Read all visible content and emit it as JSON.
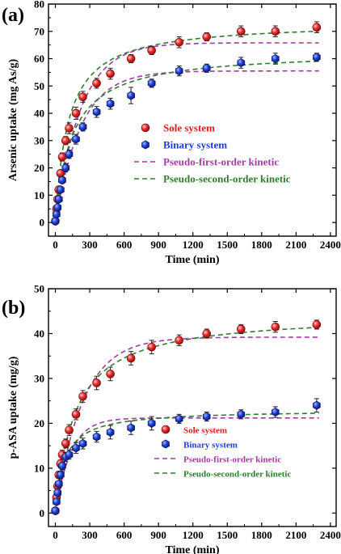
{
  "chart_data": [
    {
      "type": "scatter",
      "panel_label": "(a)",
      "xlabel": "Time (min)",
      "ylabel": "Arsenic uptake (mg As/g)",
      "xlim": [
        -60,
        2450
      ],
      "ylim": [
        -5,
        80
      ],
      "x_ticks": [
        0,
        300,
        600,
        900,
        1200,
        1500,
        1800,
        2100,
        2400
      ],
      "y_ticks": [
        0,
        10,
        20,
        30,
        40,
        50,
        60,
        70,
        80
      ],
      "grid": false,
      "legend_position": "center-right",
      "series": [
        {
          "name": "Sole system",
          "kind": "points",
          "color": "#e01b1b",
          "x": [
            0,
            10,
            20,
            30,
            45,
            60,
            90,
            120,
            180,
            240,
            360,
            480,
            660,
            840,
            1080,
            1320,
            1620,
            1920,
            2280
          ],
          "y": [
            0.5,
            5,
            8.5,
            12,
            18,
            24,
            30,
            34.5,
            40,
            46,
            51,
            54.5,
            60,
            63,
            66,
            68,
            70,
            70,
            71.5
          ],
          "err": [
            0.5,
            0.8,
            0.8,
            1,
            1.2,
            1.5,
            1.5,
            2,
            2.2,
            2,
            1.8,
            2,
            1.5,
            1.5,
            2,
            1.5,
            2,
            2,
            2
          ]
        },
        {
          "name": "Binary system",
          "kind": "points",
          "color": "#1b3fd6",
          "x": [
            0,
            10,
            20,
            30,
            45,
            60,
            90,
            120,
            180,
            240,
            360,
            480,
            660,
            840,
            1080,
            1320,
            1620,
            1920,
            2280
          ],
          "y": [
            0.5,
            3,
            5.5,
            8.5,
            12,
            15.5,
            20,
            25,
            30.5,
            35,
            40.5,
            43.5,
            46.5,
            51,
            55.5,
            56.5,
            58.5,
            60,
            60.5
          ],
          "err": [
            0.5,
            0.6,
            0.7,
            0.8,
            1,
            1.2,
            1.5,
            1.5,
            1.8,
            1.5,
            2,
            2,
            3,
            1.5,
            1.8,
            1.5,
            2,
            2,
            1.5
          ]
        },
        {
          "name": "Pseudo-first-order kinetic",
          "kind": "dashed-pair",
          "color": "#a23aa2",
          "curves": [
            {
              "qe": 65.8,
              "k1": 0.0045
            },
            {
              "qe": 55.5,
              "k1": 0.0045
            }
          ]
        },
        {
          "name": "Pseudo-second-order kinetic",
          "kind": "dashed-pair",
          "color": "#2e7d2e",
          "curves": [
            {
              "qe": 73.5,
              "k2": 0.00012
            },
            {
              "qe": 62.8,
              "k2": 0.00011
            }
          ]
        }
      ]
    },
    {
      "type": "scatter",
      "panel_label": "(b)",
      "xlabel": "Time (min)",
      "ylabel": "p-ASA uptake (mg/g)",
      "xlim": [
        -60,
        2450
      ],
      "ylim": [
        -3,
        50
      ],
      "x_ticks": [
        0,
        300,
        600,
        900,
        1200,
        1500,
        1800,
        2100,
        2400
      ],
      "y_ticks": [
        0,
        10,
        20,
        30,
        40,
        50
      ],
      "grid": false,
      "legend_position": "bottom-right",
      "series": [
        {
          "name": "Sole system",
          "kind": "points",
          "color": "#e01b1b",
          "x": [
            0,
            10,
            20,
            30,
            45,
            60,
            90,
            120,
            180,
            240,
            360,
            480,
            660,
            840,
            1080,
            1320,
            1620,
            1920,
            2280
          ],
          "y": [
            0.5,
            3.5,
            6,
            8.5,
            11,
            13,
            15.5,
            18.5,
            22,
            26,
            29,
            31,
            34.5,
            37,
            38.5,
            40,
            41,
            41.5,
            42
          ],
          "err": [
            0.3,
            0.5,
            0.6,
            0.8,
            0.8,
            1,
            1,
            1.2,
            1.2,
            1.3,
            1.5,
            1.5,
            1.5,
            1.5,
            1.2,
            1,
            1,
            1.2,
            1
          ]
        },
        {
          "name": "Binary system",
          "kind": "points",
          "color": "#1b3fd6",
          "x": [
            0,
            10,
            20,
            30,
            45,
            60,
            90,
            120,
            180,
            240,
            360,
            480,
            660,
            840,
            1080,
            1320,
            1620,
            1920,
            2280
          ],
          "y": [
            0.5,
            2.5,
            4.5,
            6.5,
            8.5,
            10.5,
            12.5,
            13,
            14.5,
            15.5,
            17,
            18,
            19,
            20,
            21,
            21.5,
            22,
            22.5,
            24
          ],
          "err": [
            0.3,
            0.4,
            0.5,
            0.6,
            0.8,
            0.8,
            1,
            1,
            1.2,
            1.2,
            1.2,
            1.5,
            1.5,
            1.5,
            1,
            1,
            1,
            1.2,
            1.5
          ]
        },
        {
          "name": "Pseudo-first-order kinetic",
          "kind": "dashed-pair",
          "color": "#a23aa2",
          "curves": [
            {
              "qe": 39.2,
              "k1": 0.0042
            },
            {
              "qe": 21.2,
              "k1": 0.0075
            }
          ]
        },
        {
          "name": "Pseudo-second-order kinetic",
          "kind": "dashed-pair",
          "color": "#2e7d2e",
          "curves": [
            {
              "qe": 44.5,
              "k2": 0.00013
            },
            {
              "qe": 23.0,
              "k2": 0.00055
            }
          ]
        }
      ]
    }
  ]
}
